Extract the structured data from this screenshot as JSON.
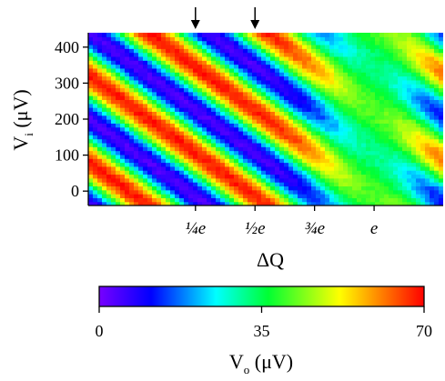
{
  "chart_data": {
    "type": "heatmap",
    "xlabel": "ΔQ",
    "ylabel": "V_i (μV)",
    "ylabel_main": "V",
    "ylabel_sub": "i",
    "ylabel_unit": " (μV)",
    "x_ticks": [
      {
        "value": 0.25,
        "label": "¼e"
      },
      {
        "value": 0.5,
        "label": "½e"
      },
      {
        "value": 0.75,
        "label": "¾e"
      },
      {
        "value": 1.0,
        "label": "e"
      }
    ],
    "xlim": [
      -0.2,
      1.29
    ],
    "y_ticks": [
      0,
      100,
      200,
      300,
      400
    ],
    "ylim": [
      -40,
      440
    ],
    "arrows_at_x": [
      0.25,
      0.5
    ],
    "grid": false,
    "stripe_period_q": 0.5,
    "stripe_slope_uV_per_q": -480,
    "value_range": [
      0,
      70
    ],
    "description_of_values": "Diagonal stripes of V_o alternating between ~5 and ~70 μV, amplitude strongest near ΔQ 0.1–0.6 and weakest near ΔQ ≈ 1",
    "colorbar": {
      "min": 0,
      "mid": 35,
      "max": 70,
      "tick_labels": [
        "0",
        "35",
        "70"
      ],
      "label": "V_o (μV)",
      "label_main": "V",
      "label_sub": "o",
      "label_unit": " (μV)",
      "colors": [
        "#7700ff",
        "#0000ff",
        "#00ffff",
        "#00ff33",
        "#ffff00",
        "#ff8800",
        "#ff0000"
      ]
    }
  }
}
